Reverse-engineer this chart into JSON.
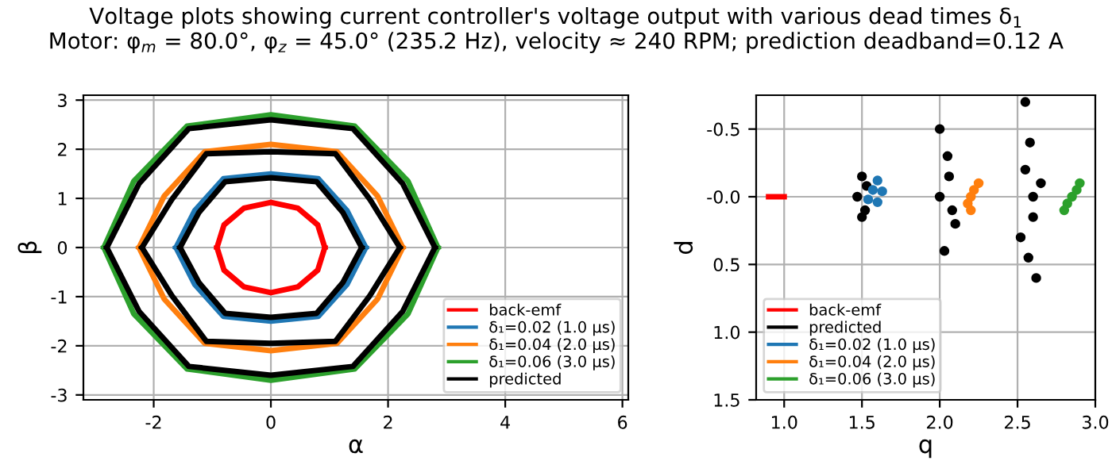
{
  "chart_data": [
    {
      "type": "line",
      "title": "Voltage plots showing current controller's voltage output with various dead times δ$_{1}$",
      "subtitle": "Motor: φ$_{m}$ = 80.0°, φ$_{z}$ = 45.0° (235.2 Hz), velocity ≈ 240 RPM; prediction deadband=0.12 A",
      "xlabel": "α",
      "ylabel": "β",
      "xlim": [
        -3.2,
        6.1
      ],
      "ylim": [
        -3.1,
        3.1
      ],
      "xticks": [
        -2,
        0,
        2,
        4,
        6
      ],
      "yticks": [
        -3,
        -2,
        -1,
        0,
        1,
        2,
        3
      ],
      "grid": true,
      "legend": "bottom right",
      "series": [
        {
          "name": "back-emf",
          "color": "#ff0000",
          "x": [
            -0.92,
            -0.8,
            -0.46,
            0,
            0.46,
            0.8,
            0.92
          ],
          "values": [
            0,
            0.46,
            0.8,
            0.92,
            0.8,
            0.46,
            0
          ]
        },
        {
          "color": "#ff0000",
          "x": [
            -0.92,
            -0.8,
            -0.46,
            0,
            0.46,
            0.8,
            0.92
          ],
          "values": [
            0,
            -0.46,
            -0.8,
            -0.92,
            -0.8,
            -0.46,
            0
          ]
        },
        {
          "name": "δ₁=0.02 (1.0 μs)",
          "color": "#1f77b4",
          "x": [
            -1.62,
            -1.3,
            -0.81,
            0,
            0.81,
            1.3,
            1.62
          ],
          "values": [
            0,
            0.75,
            1.4,
            1.5,
            1.4,
            0.75,
            0
          ]
        },
        {
          "color": "#1f77b4",
          "x": [
            -1.62,
            -1.3,
            -0.81,
            0,
            0.81,
            1.3,
            1.62
          ],
          "values": [
            0,
            -0.75,
            -1.4,
            -1.5,
            -1.4,
            -0.75,
            0
          ]
        },
        {
          "name": "δ₁=0.04 (2.0 μs)",
          "color": "#ff7f0e",
          "x": [
            -2.25,
            -1.82,
            -1.13,
            0,
            1.13,
            1.82,
            2.25
          ],
          "values": [
            0,
            1.05,
            1.95,
            2.1,
            1.95,
            1.05,
            0
          ]
        },
        {
          "color": "#ff7f0e",
          "x": [
            -2.25,
            -1.82,
            -1.13,
            0,
            1.13,
            1.82,
            2.25
          ],
          "values": [
            0,
            -1.05,
            -1.95,
            -2.1,
            -1.95,
            -1.05,
            0
          ]
        },
        {
          "name": "δ₁=0.06 (3.0 μs)",
          "color": "#2ca02c",
          "x": [
            -2.85,
            -2.34,
            -1.43,
            0,
            1.43,
            2.34,
            2.85
          ],
          "values": [
            0,
            1.35,
            2.47,
            2.7,
            2.47,
            1.35,
            0
          ]
        },
        {
          "color": "#2ca02c",
          "x": [
            -2.85,
            -2.34,
            -1.43,
            0,
            1.43,
            2.34,
            2.85
          ],
          "values": [
            0,
            -1.35,
            -2.47,
            -2.7,
            -2.47,
            -1.35,
            0
          ]
        },
        {
          "name": "predicted",
          "color": "#000000",
          "x": [
            -1.55,
            -1.23,
            -0.78,
            0,
            0.78,
            1.23,
            1.55
          ],
          "values": [
            0,
            0.71,
            1.34,
            1.42,
            1.34,
            0.71,
            0
          ]
        },
        {
          "color": "#000000",
          "x": [
            -1.55,
            -1.23,
            -0.78,
            0,
            0.78,
            1.23,
            1.55
          ],
          "values": [
            0,
            -0.71,
            -1.34,
            -1.42,
            -1.34,
            -0.71,
            0
          ]
        },
        {
          "color": "#000000",
          "x": [
            -2.2,
            -1.69,
            -1.1,
            0,
            1.1,
            1.69,
            2.2
          ],
          "values": [
            0,
            0.98,
            1.91,
            1.95,
            1.91,
            0.98,
            0
          ]
        },
        {
          "color": "#000000",
          "x": [
            -2.2,
            -1.69,
            -1.1,
            0,
            1.1,
            1.69,
            2.2
          ],
          "values": [
            0,
            -0.98,
            -1.91,
            -1.95,
            -1.91,
            -0.98,
            0
          ]
        },
        {
          "color": "#000000",
          "x": [
            -2.8,
            -2.25,
            -1.4,
            0,
            1.4,
            2.25,
            2.8
          ],
          "values": [
            0,
            1.3,
            2.42,
            2.6,
            2.42,
            1.3,
            0
          ]
        },
        {
          "color": "#000000",
          "x": [
            -2.8,
            -2.25,
            -1.4,
            0,
            1.4,
            2.25,
            2.8
          ],
          "values": [
            0,
            -1.3,
            -2.42,
            -2.6,
            -2.42,
            -1.3,
            0
          ]
        }
      ]
    },
    {
      "type": "scatter",
      "xlabel": "q",
      "ylabel": "d",
      "xlim": [
        0.82,
        3.0
      ],
      "ylim": [
        1.5,
        -0.75
      ],
      "xticks": [
        {
          "value": 1,
          "label": "1.0"
        },
        1.5,
        {
          "value": 2,
          "label": "2.0"
        },
        2.5,
        {
          "value": 3,
          "label": "3.0"
        }
      ],
      "yticks": [
        -0.5,
        {
          "value": 0,
          "label": "-0.0"
        },
        0.5,
        {
          "value": 1,
          "label": "1.0"
        },
        1.5
      ],
      "grid": true,
      "legend": "bottom left",
      "series": [
        {
          "name": "back-emf",
          "color": "#ff0000",
          "type": "line",
          "marker": "none",
          "x": [
            0.9,
            1.0
          ],
          "values": [
            0,
            0
          ]
        },
        {
          "name": "predicted",
          "color": "#000000",
          "marker": "circle",
          "x": [
            1.5,
            1.52,
            1.47,
            1.5,
            1.53,
            2.0,
            2.05,
            2.08,
            2.03,
            2.1,
            2.0,
            2.06,
            2.55,
            2.58,
            2.6,
            2.52,
            2.62,
            2.57,
            2.55,
            2.6,
            2.65
          ],
          "values": [
            -0.15,
            0.1,
            0,
            0.15,
            -0.08,
            -0.5,
            -0.3,
            0.1,
            0.4,
            0.2,
            0,
            -0.15,
            -0.7,
            -0.4,
            0,
            0.3,
            0.6,
            0.45,
            -0.2,
            0.15,
            -0.1
          ]
        },
        {
          "name": "δ₁=0.02 (1.0 μs)",
          "color": "#1f77b4",
          "marker": "circle",
          "x": [
            1.54,
            1.6,
            1.57,
            1.63,
            1.6
          ],
          "values": [
            0.02,
            -0.12,
            -0.05,
            -0.04,
            0.04
          ]
        },
        {
          "name": "δ₁=0.04 (2.0 μs)",
          "color": "#ff7f0e",
          "marker": "circle",
          "x": [
            2.2,
            2.25,
            2.18,
            2.22,
            2.2
          ],
          "values": [
            0,
            -0.1,
            0.05,
            -0.05,
            0.1
          ]
        },
        {
          "name": "δ₁=0.06 (3.0 μs)",
          "color": "#2ca02c",
          "marker": "circle",
          "x": [
            2.85,
            2.9,
            2.82,
            2.88,
            2.8
          ],
          "values": [
            0,
            -0.1,
            0.05,
            -0.05,
            0.1
          ]
        }
      ]
    }
  ]
}
